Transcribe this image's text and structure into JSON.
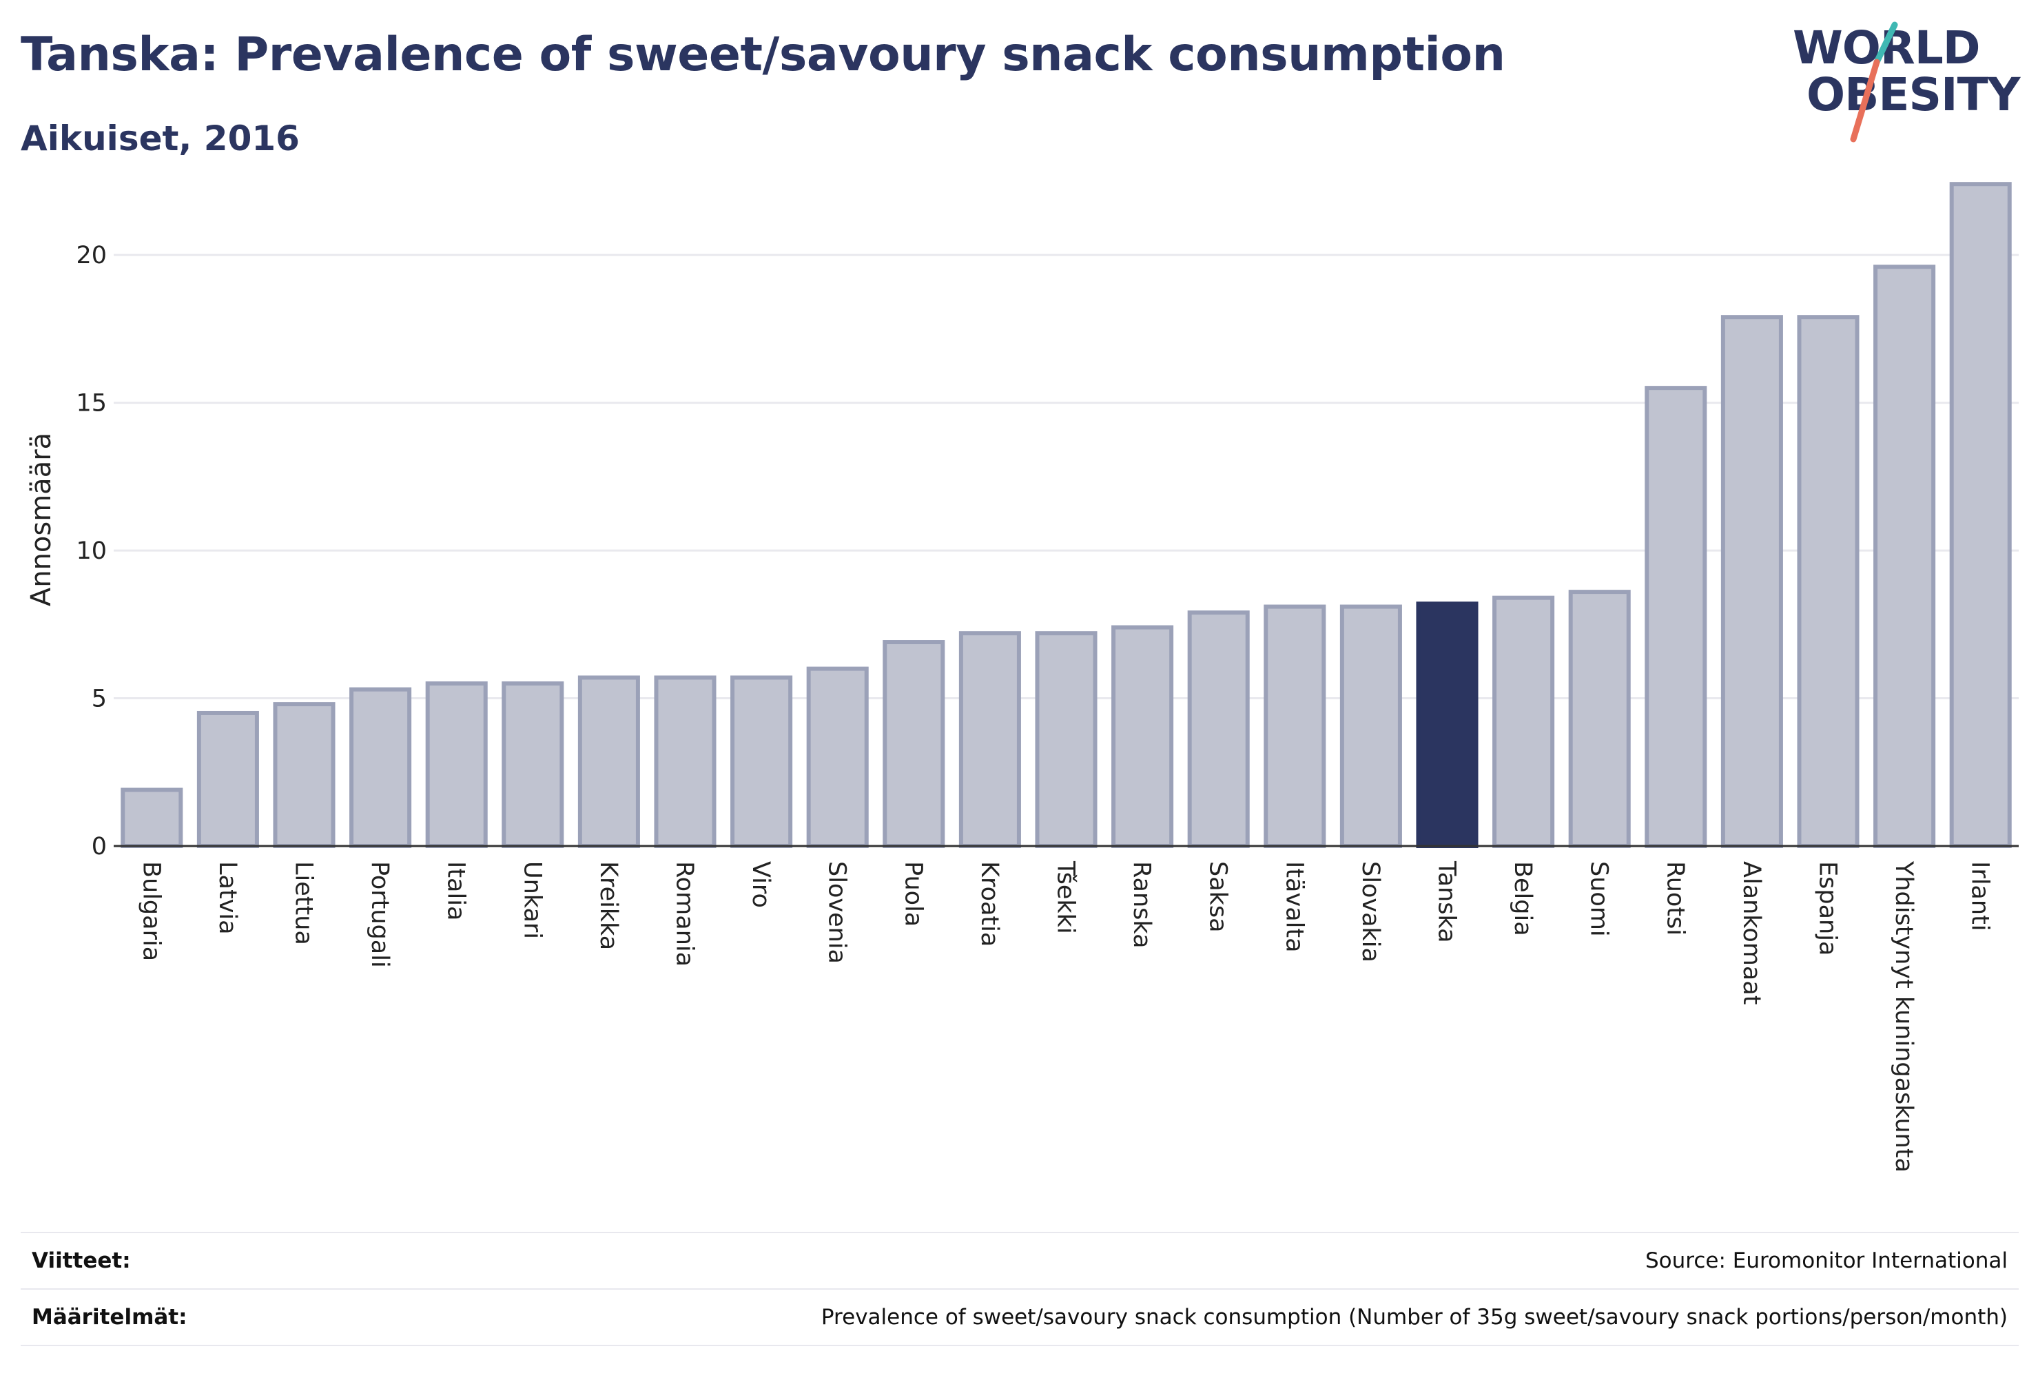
{
  "header": {
    "title": "Tanska: Prevalence of sweet/savoury snack consumption",
    "subtitle": "Aikuiset, 2016"
  },
  "logo": {
    "line1": "WORLD",
    "line2": "OBESITY",
    "accent_teal": "#3fb8b3",
    "accent_coral": "#e8705a"
  },
  "footer": {
    "sources_label": "Viitteet:",
    "sources_value": "Source: Euromonitor International",
    "definitions_label": "Määritelmät:",
    "definitions_value": "Prevalence of sweet/savoury snack consumption (Number of 35g sweet/savoury snack portions/person/month)"
  },
  "chart_data": {
    "type": "bar",
    "ylabel": "Annosmäärä",
    "ylim": [
      0,
      23.5
    ],
    "yticks": [
      0,
      5,
      10,
      15,
      20
    ],
    "grid": true,
    "highlight": "Tanska",
    "colors": {
      "bar": "#c0c3d0",
      "bar_border": "#9ba1b8",
      "highlight": "#2b3560",
      "grid": "#e9e9ee",
      "axis": "#333333"
    },
    "categories": [
      "Bulgaria",
      "Latvia",
      "Liettua",
      "Portugali",
      "Italia",
      "Unkari",
      "Kreikka",
      "Romania",
      "Viro",
      "Slovenia",
      "Puola",
      "Kroatia",
      "Tšekki",
      "Ranska",
      "Saksa",
      "Itävalta",
      "Slovakia",
      "Tanska",
      "Belgia",
      "Suomi",
      "Ruotsi",
      "Alankomaat",
      "Espanja",
      "Yhdistynyt kuningaskunta",
      "Irlanti"
    ],
    "values": [
      1.9,
      4.5,
      4.8,
      5.3,
      5.5,
      5.5,
      5.7,
      5.7,
      5.7,
      6.0,
      6.9,
      7.2,
      7.2,
      7.4,
      7.9,
      8.1,
      8.1,
      8.2,
      8.4,
      8.6,
      15.5,
      17.9,
      17.9,
      19.6,
      22.4
    ]
  }
}
